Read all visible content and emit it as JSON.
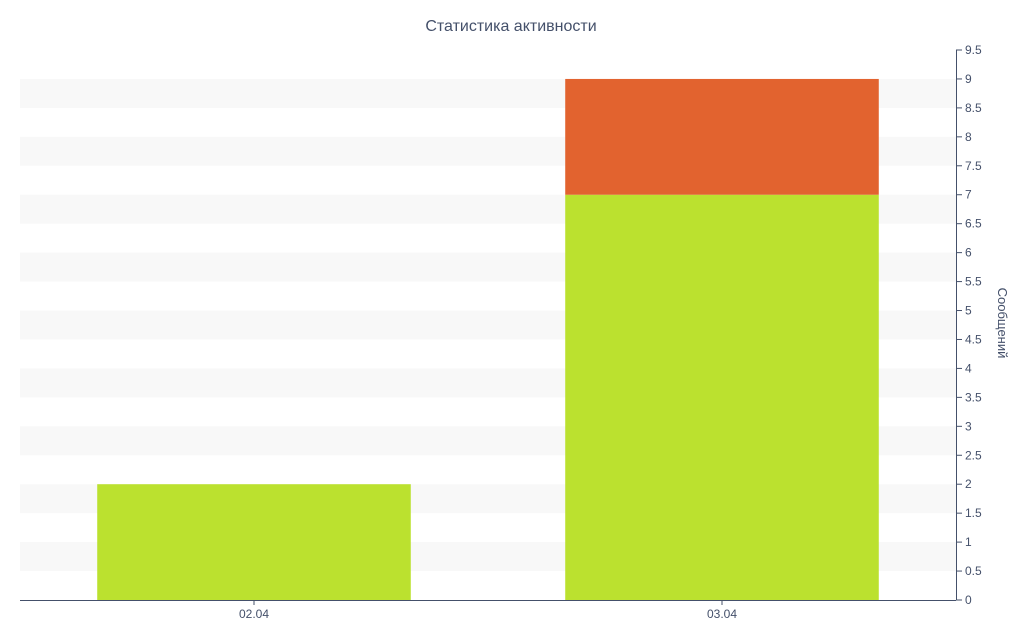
{
  "chart_data": {
    "type": "bar",
    "stacked": true,
    "title": "Статистика активности",
    "xlabel": "",
    "ylabel": "Сообщений",
    "y_axis_side": "right",
    "categories": [
      "02.04",
      "03.04"
    ],
    "series": [
      {
        "values": [
          2,
          7
        ],
        "color": "#bbe12f"
      },
      {
        "values": [
          0,
          2
        ],
        "color": "#e2632f"
      }
    ],
    "ylim": [
      0,
      9.5
    ],
    "yticks": [
      0,
      0.5,
      1,
      1.5,
      2,
      2.5,
      3,
      3.5,
      4,
      4.5,
      5,
      5.5,
      6,
      6.5,
      7,
      7.5,
      8,
      8.5,
      9,
      9.5
    ],
    "ytick_labels": [
      "0",
      "0.5",
      "1",
      "1.5",
      "2",
      "2.5",
      "3",
      "3.5",
      "4",
      "4.5",
      "5",
      "5.5",
      "6",
      "6.5",
      "7",
      "7.5",
      "8",
      "8.5",
      "9",
      "9.5"
    ],
    "grid": "alternating horizontal bands",
    "legend": "none",
    "colors": {
      "band": "#f8f8f8",
      "axis": "#44506a",
      "text": "#44506a"
    }
  }
}
